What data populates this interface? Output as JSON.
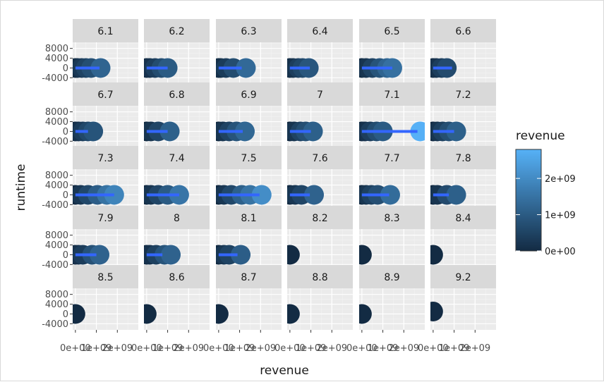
{
  "chart_data": {
    "type": "scatter",
    "facet_by": "vote_average",
    "xlabel": "revenue",
    "ylabel": "runtime",
    "xlim": [
      -130000000.0,
      3000000000.0
    ],
    "ylim": [
      -6500,
      10500
    ],
    "x_ticks": [
      0,
      1000000000,
      2000000000
    ],
    "x_tick_labels": [
      "0e+00",
      "1e+09",
      "2e+09"
    ],
    "y_ticks": [
      -4000,
      0,
      4000,
      8000
    ],
    "y_tick_labels": [
      "-4000",
      "0",
      "4000",
      "8000"
    ],
    "grid": true,
    "legend": {
      "title": "revenue",
      "type": "colorbar",
      "placement": "right",
      "range": [
        0,
        2800000000
      ],
      "ticks": [
        0,
        1000000000,
        2000000000
      ],
      "tick_labels": [
        "0e+00",
        "1e+09",
        "2e+09"
      ],
      "low_color": "#132b43",
      "high_color": "#56b1f7"
    },
    "line_color": "#3366ff",
    "facets": [
      {
        "label": "6.1",
        "points": [
          0,
          100000000,
          300000000,
          500000000,
          750000000,
          1200000000
        ],
        "fit_end": 1150000000
      },
      {
        "label": "6.2",
        "points": [
          0,
          150000000,
          400000000,
          700000000,
          1000000000
        ],
        "fit_end": 1000000000
      },
      {
        "label": "6.3",
        "points": [
          0,
          100000000,
          350000000,
          700000000,
          1300000000
        ],
        "fit_end": 1100000000
      },
      {
        "label": "6.4",
        "points": [
          0,
          150000000,
          400000000,
          600000000,
          900000000
        ],
        "fit_end": 950000000
      },
      {
        "label": "6.5",
        "points": [
          0,
          200000000,
          500000000,
          850000000,
          1200000000,
          1450000000
        ],
        "fit_end": 1450000000
      },
      {
        "label": "6.6",
        "points": [
          0,
          150000000,
          400000000,
          650000000
        ],
        "fit_end": 900000000
      },
      {
        "label": "6.7",
        "points": [
          0,
          150000000,
          350000000,
          600000000,
          850000000
        ],
        "fit_end": 600000000
      },
      {
        "label": "6.8",
        "points": [
          0,
          200000000,
          550000000,
          1100000000
        ],
        "fit_end": 1000000000
      },
      {
        "label": "6.9",
        "points": [
          0,
          200000000,
          500000000,
          850000000,
          1250000000
        ],
        "fit_end": 1150000000
      },
      {
        "label": "7",
        "points": [
          0,
          200000000,
          500000000,
          750000000,
          1100000000
        ],
        "fit_end": 1000000000
      },
      {
        "label": "7.1",
        "points": [
          0,
          150000000,
          400000000,
          700000000,
          1000000000,
          2780000000
        ],
        "fit_end": 2650000000
      },
      {
        "label": "7.2",
        "points": [
          0,
          200000000,
          450000000,
          750000000,
          1100000000
        ],
        "fit_end": 1000000000
      },
      {
        "label": "7.3",
        "points": [
          0,
          250000000,
          600000000,
          1050000000,
          1500000000,
          1850000000
        ],
        "fit_end": 1850000000
      },
      {
        "label": "7.4",
        "points": [
          0,
          200000000,
          550000000,
          1000000000,
          1550000000
        ],
        "fit_end": 1550000000
      },
      {
        "label": "7.5",
        "points": [
          0,
          250000000,
          600000000,
          1100000000,
          1500000000,
          2050000000
        ],
        "fit_end": 1950000000
      },
      {
        "label": "7.6",
        "points": [
          0,
          250000000,
          550000000,
          1150000000
        ],
        "fit_end": 950000000
      },
      {
        "label": "7.7",
        "points": [
          0,
          200000000,
          450000000,
          750000000,
          1350000000
        ],
        "fit_end": 1300000000
      },
      {
        "label": "7.8",
        "points": [
          0,
          200000000,
          650000000,
          1100000000
        ],
        "fit_end": 750000000
      },
      {
        "label": "7.9",
        "points": [
          0,
          150000000,
          350000000,
          800000000,
          1150000000
        ],
        "fit_end": 1000000000
      },
      {
        "label": "8",
        "points": [
          0,
          150000000,
          450000000,
          850000000,
          1150000000
        ],
        "fit_end": 750000000
      },
      {
        "label": "8.1",
        "points": [
          0,
          250000000,
          500000000,
          1050000000
        ],
        "fit_end": 900000000
      },
      {
        "label": "8.2",
        "points": [
          0
        ],
        "fit_end": null
      },
      {
        "label": "8.3",
        "points": [
          0
        ],
        "fit_end": null
      },
      {
        "label": "8.4",
        "points": [
          0
        ],
        "fit_end": null
      },
      {
        "label": "8.5",
        "points": [
          0
        ],
        "fit_end": null
      },
      {
        "label": "8.6",
        "points": [
          0
        ],
        "fit_end": null
      },
      {
        "label": "8.7",
        "points": [
          0
        ],
        "fit_end": null
      },
      {
        "label": "8.8",
        "points": [
          0
        ],
        "fit_end": null
      },
      {
        "label": "8.9",
        "points": [
          0
        ],
        "fit_end": null
      },
      {
        "label": "9.2",
        "points": [
          0
        ],
        "fit_end": null,
        "point_y": 1000
      }
    ]
  }
}
